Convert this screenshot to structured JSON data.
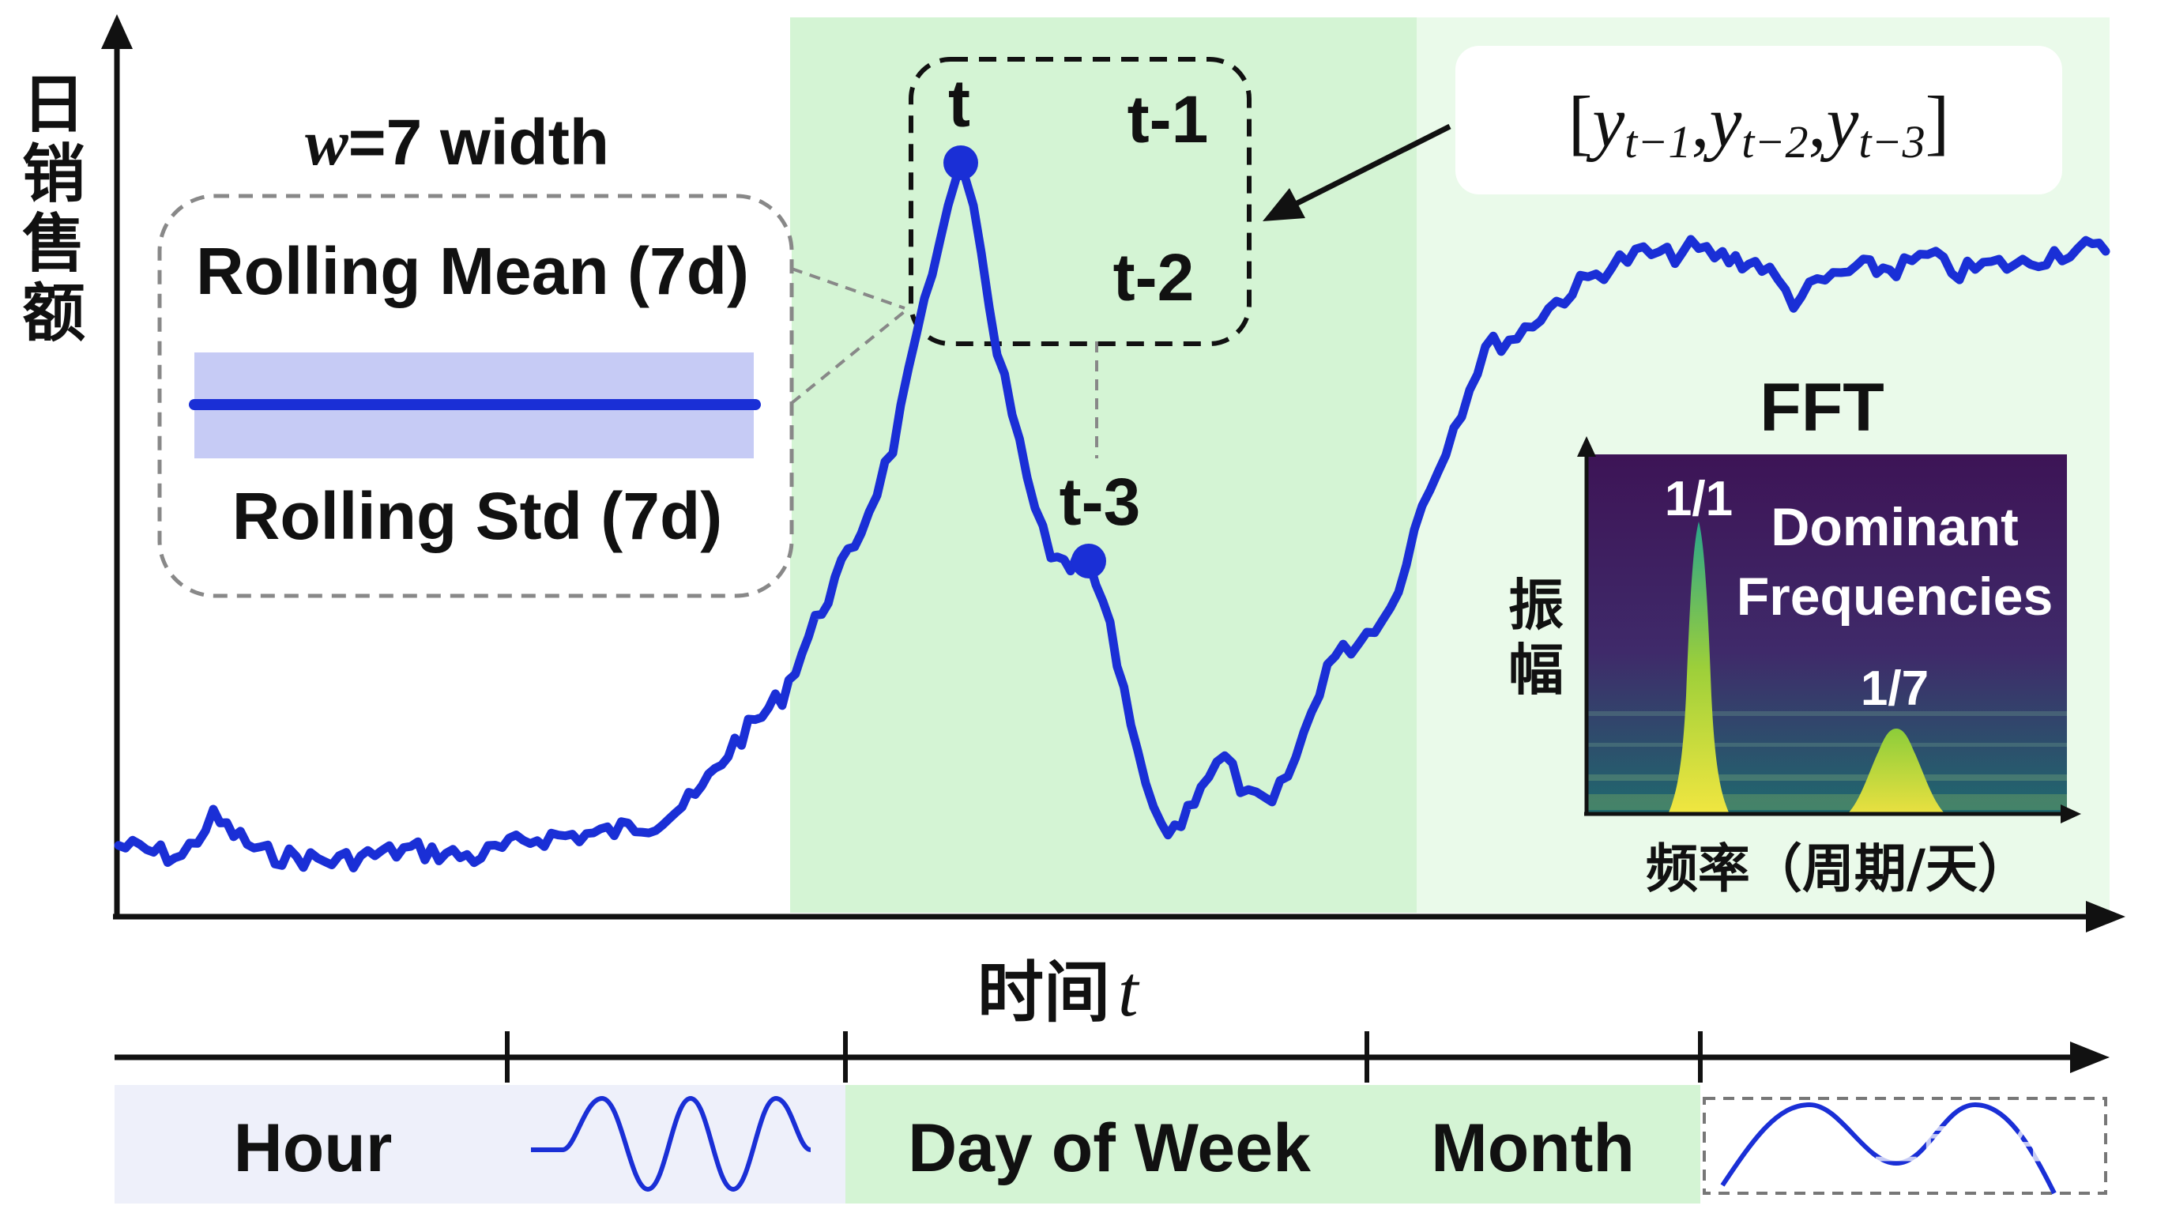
{
  "y_axis_label": [
    "日",
    "销",
    "售",
    "额"
  ],
  "x_axis_label": "时间",
  "x_axis_symbol": "t",
  "window": {
    "w_label": "w",
    "rest_label": "=7 width",
    "mean_label": "Rolling Mean (7d)",
    "std_label": "Rolling Std (7d)"
  },
  "lags": {
    "t": "t",
    "t1": "t-1",
    "t2": "t-2",
    "t3": "t-3"
  },
  "lag_vector": {
    "open": "[",
    "close": "]",
    "sep": ",",
    "var": "y",
    "subs": [
      "t−1",
      "t−2",
      "t−3"
    ]
  },
  "fft": {
    "title": "FFT",
    "y_label": [
      "振",
      "幅"
    ],
    "x_label": "频率（周期/天）",
    "annotation_line1": "Dominant",
    "annotation_line2": "Frequencies",
    "peak1_label": "1/1",
    "peak2_label": "1/7"
  },
  "time_features": {
    "hour": "Hour",
    "day_of_week": "Day of Week",
    "month": "Month"
  },
  "watermark": "豆包AI生成",
  "colors": {
    "line": "#1a2fd6",
    "band": "#c8ccf6",
    "green_shade": "#d6f5d6",
    "light_green": "#ebfaeb",
    "fft_bg": "#4a1a5c"
  }
}
